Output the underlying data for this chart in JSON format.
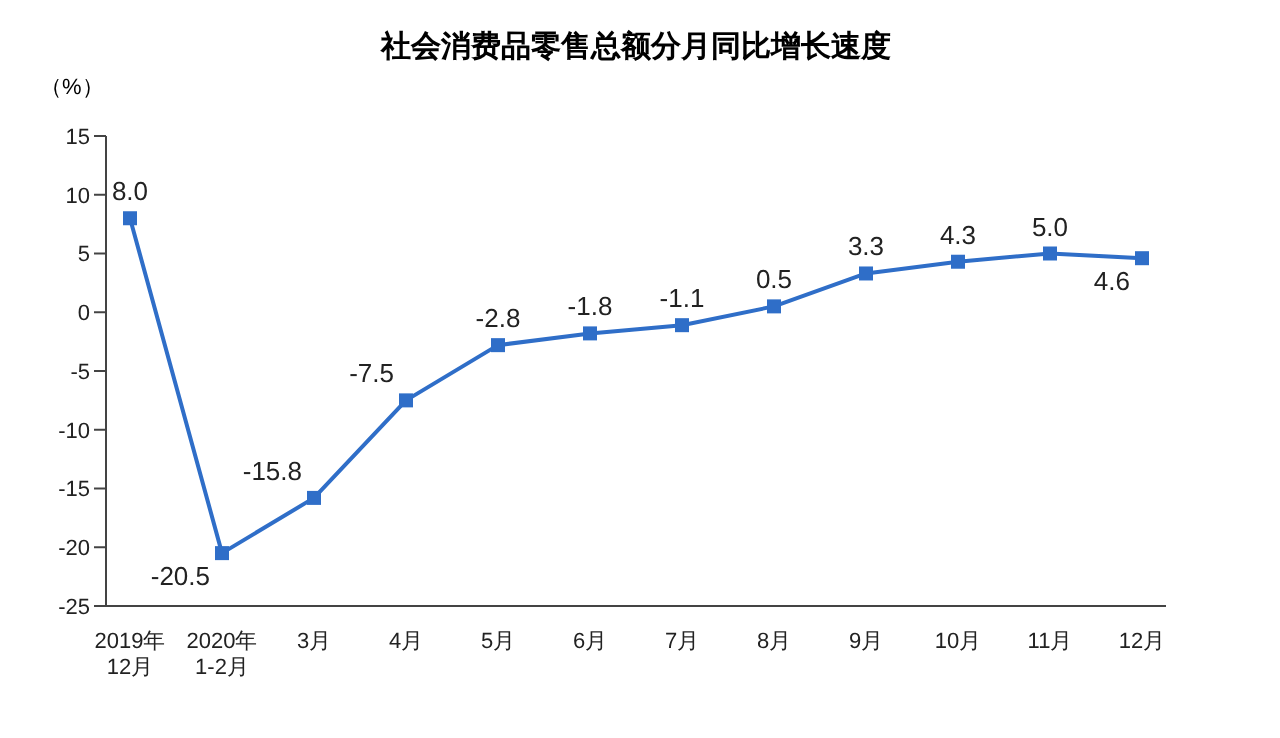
{
  "chart_data": {
    "type": "line",
    "title": "社会消费品零售总额分月同比增长速度",
    "ylabel": "（%）",
    "categories": [
      "2019年\n12月",
      "2020年\n1-2月",
      "3月",
      "4月",
      "5月",
      "6月",
      "7月",
      "8月",
      "9月",
      "10月",
      "11月",
      "12月"
    ],
    "series": [
      {
        "color": "#2f6ec8",
        "values": [
          8.0,
          -20.5,
          -15.8,
          -7.5,
          -2.8,
          -1.8,
          -1.1,
          0.5,
          3.3,
          4.3,
          5.0,
          4.6
        ],
        "value_labels": [
          "8.0",
          "-20.5",
          "-15.8",
          "-7.5",
          "-2.8",
          "-1.8",
          "-1.1",
          "0.5",
          "3.3",
          "4.3",
          "5.0",
          "4.6"
        ]
      }
    ],
    "ylim": [
      -25,
      15
    ],
    "yticks": [
      -25,
      -20,
      -15,
      -10,
      -5,
      0,
      5,
      10,
      15
    ],
    "marker": "square",
    "line_style": "solid"
  }
}
